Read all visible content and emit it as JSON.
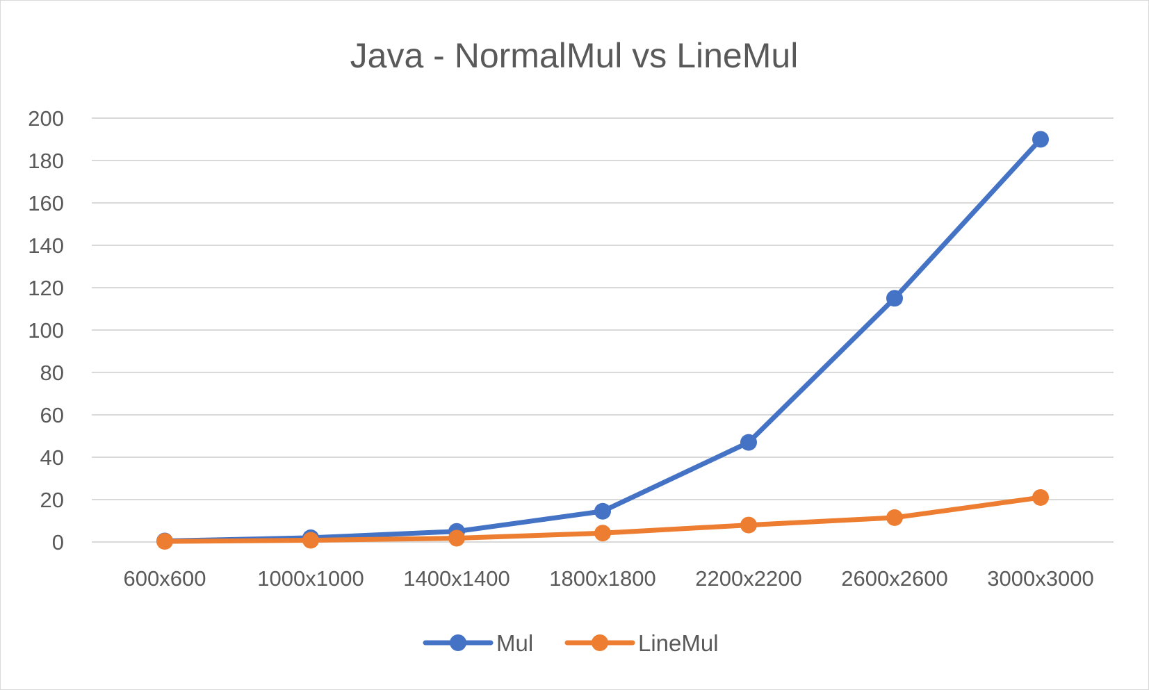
{
  "chart_data": {
    "type": "line",
    "title": "Java - NormalMul vs LineMul",
    "xlabel": "",
    "ylabel": "",
    "categories": [
      "600x600",
      "1000x1000",
      "1400x1400",
      "1800x1800",
      "2200x2200",
      "2600x2600",
      "3000x3000"
    ],
    "ylim": [
      0,
      200
    ],
    "yticks": [
      0,
      20,
      40,
      60,
      80,
      100,
      120,
      140,
      160,
      180,
      200
    ],
    "grid": true,
    "legend": "bottom",
    "series": [
      {
        "name": "Mul",
        "color": "#4472c4",
        "values": [
          0.5,
          2,
          5,
          14.5,
          47,
          115,
          190
        ]
      },
      {
        "name": "LineMul",
        "color": "#ed7d31",
        "values": [
          0.3,
          0.8,
          1.8,
          4.2,
          8,
          11.5,
          21
        ]
      }
    ]
  }
}
